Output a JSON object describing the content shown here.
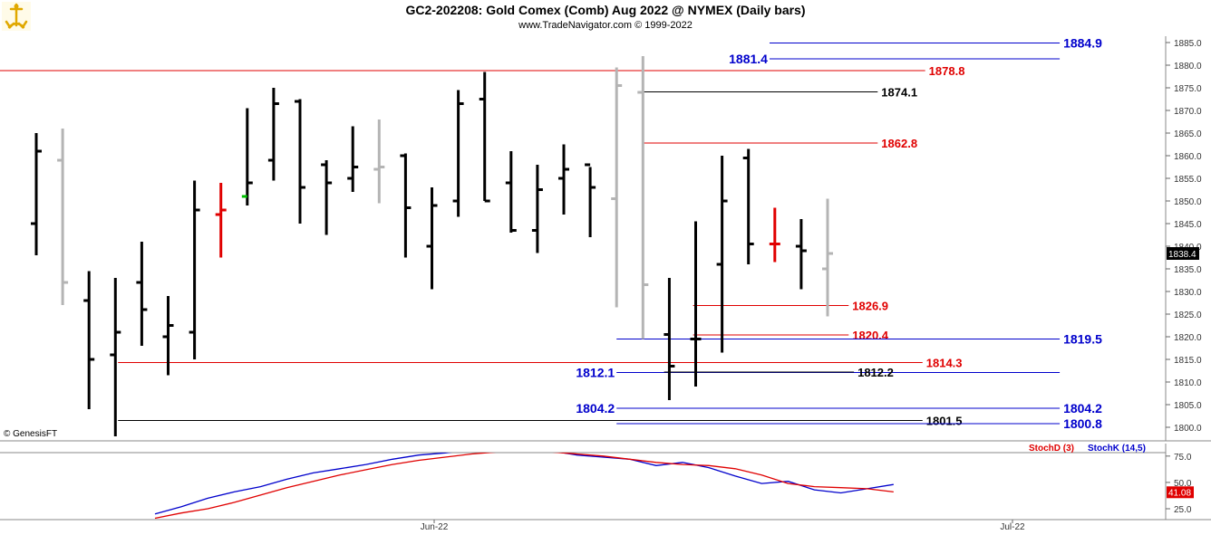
{
  "header": {
    "title": "GC2-202208:  Gold Comex (Comb) Aug 2022 @ NYMEX  (Daily bars)",
    "subtitle": "www.TradeNavigator.com © 1999-2022",
    "credit": "© GenesisFT"
  },
  "colors": {
    "up_bar": "#000000",
    "down_bar": "#000000",
    "gray_bar": "#b4b4b4",
    "red_bar": "#e00000",
    "blue_level": "#0000cc",
    "red_level": "#e00000",
    "black_level": "#000000",
    "stoch_d": "#e00000",
    "stoch_k": "#0000cc",
    "grid": "#666666"
  },
  "chart_data": [
    {
      "type": "bar",
      "subtype": "ohlc",
      "title": "GC2-202208:  Gold Comex (Comb) Aug 2022 @ NYMEX  (Daily bars)",
      "ylim": [
        1797,
        1888
      ],
      "y_ticks": [
        1800,
        1805,
        1810,
        1815,
        1820,
        1825,
        1830,
        1835,
        1840,
        1845,
        1850,
        1855,
        1860,
        1865,
        1870,
        1875,
        1880,
        1885
      ],
      "x_labels": [
        "Jun-22",
        "Jul-22"
      ],
      "last_price": "1838.4",
      "bars": [
        {
          "o": 1845,
          "h": 1865,
          "l": 1838,
          "c": 1861,
          "color": "black"
        },
        {
          "o": 1859,
          "h": 1866,
          "l": 1827,
          "c": 1832,
          "color": "gray"
        },
        {
          "o": 1828,
          "h": 1834.5,
          "l": 1804,
          "c": 1815,
          "color": "black"
        },
        {
          "o": 1816,
          "h": 1833,
          "l": 1798,
          "c": 1821,
          "color": "black"
        },
        {
          "o": 1832,
          "h": 1841,
          "l": 1818,
          "c": 1826,
          "color": "black"
        },
        {
          "o": 1820,
          "h": 1829,
          "l": 1811.5,
          "c": 1822.5,
          "color": "black"
        },
        {
          "o": 1821,
          "h": 1854.5,
          "l": 1815,
          "c": 1848,
          "color": "black"
        },
        {
          "o": 1847,
          "h": 1854,
          "l": 1837.5,
          "c": 1848,
          "color": "red"
        },
        {
          "o": 1851,
          "h": 1870.5,
          "l": 1849,
          "c": 1854,
          "color": "black",
          "open_color": "green"
        },
        {
          "o": 1859,
          "h": 1875,
          "l": 1854.5,
          "c": 1871.5,
          "color": "black"
        },
        {
          "o": 1872,
          "h": 1872.5,
          "l": 1845,
          "c": 1853,
          "color": "black"
        },
        {
          "o": 1858,
          "h": 1859,
          "l": 1842.5,
          "c": 1854,
          "color": "black"
        },
        {
          "o": 1855,
          "h": 1866.5,
          "l": 1852,
          "c": 1857.5,
          "color": "black"
        },
        {
          "o": 1857,
          "h": 1868,
          "l": 1849.5,
          "c": 1857.5,
          "color": "gray"
        },
        {
          "o": 1860,
          "h": 1860.5,
          "l": 1837.5,
          "c": 1848.5,
          "color": "black"
        },
        {
          "o": 1840,
          "h": 1853,
          "l": 1830.5,
          "c": 1849,
          "color": "black"
        },
        {
          "o": 1850,
          "h": 1874.5,
          "l": 1846.5,
          "c": 1871.5,
          "color": "black"
        },
        {
          "o": 1872.5,
          "h": 1878.5,
          "l": 1850,
          "c": 1850,
          "color": "black"
        },
        {
          "o": 1854,
          "h": 1861,
          "l": 1843,
          "c": 1843.5,
          "color": "black"
        },
        {
          "o": 1843.5,
          "h": 1858,
          "l": 1838.5,
          "c": 1852.5,
          "color": "black"
        },
        {
          "o": 1855,
          "h": 1862.5,
          "l": 1847,
          "c": 1857,
          "color": "black"
        },
        {
          "o": 1858,
          "h": 1857.5,
          "l": 1842,
          "c": 1853,
          "color": "black"
        },
        {
          "o": 1850.5,
          "h": 1879.5,
          "l": 1826.5,
          "c": 1875.5,
          "color": "gray"
        },
        {
          "o": 1874,
          "h": 1882,
          "l": 1819.5,
          "c": 1831.5,
          "color": "gray"
        },
        {
          "o": 1820.5,
          "h": 1833,
          "l": 1806,
          "c": 1813.5,
          "color": "black"
        },
        {
          "o": 1819.5,
          "h": 1845.5,
          "l": 1809,
          "c": 1819.5,
          "color": "black"
        },
        {
          "o": 1836,
          "h": 1860,
          "l": 1816.5,
          "c": 1850,
          "color": "black"
        },
        {
          "o": 1859.5,
          "h": 1861.5,
          "l": 1836,
          "c": 1840.5,
          "color": "black"
        },
        {
          "o": 1840.5,
          "h": 1848.5,
          "l": 1836.5,
          "c": 1840.5,
          "color": "red"
        },
        {
          "o": 1840,
          "h": 1846,
          "l": 1830.5,
          "c": 1839,
          "color": "black"
        },
        {
          "o": 1835,
          "h": 1850.5,
          "l": 1824.5,
          "c": 1838.4,
          "color": "gray"
        }
      ],
      "levels": [
        {
          "value": 1884.9,
          "label": "1884.9",
          "color": "blue",
          "x0_bar": 27.8,
          "x1_bar": 38.8,
          "label_side": "right"
        },
        {
          "value": 1881.4,
          "label": "1881.4",
          "color": "blue",
          "x0_bar": 27.8,
          "x1_bar": 38.8,
          "label_side": "left"
        },
        {
          "value": 1878.8,
          "label": "1878.8",
          "color": "red",
          "x0_bar": -1.6,
          "x1_bar": 33.7,
          "label_side": "right"
        },
        {
          "value": 1874.1,
          "label": "1874.1",
          "color": "black",
          "x0_bar": 23,
          "x1_bar": 31.9,
          "label_side": "right"
        },
        {
          "value": 1862.8,
          "label": "1862.8",
          "color": "red",
          "x0_bar": 23,
          "x1_bar": 31.9,
          "label_side": "right"
        },
        {
          "value": 1826.9,
          "label": "1826.9",
          "color": "red",
          "x0_bar": 24.9,
          "x1_bar": 30.8,
          "label_side": "right"
        },
        {
          "value": 1820.4,
          "label": "1820.4",
          "color": "red",
          "x0_bar": 24.9,
          "x1_bar": 30.8,
          "label_side": "right"
        },
        {
          "value": 1819.5,
          "label": "1819.5",
          "color": "blue",
          "x0_bar": 22,
          "x1_bar": 38.8,
          "label_side": "right"
        },
        {
          "value": 1814.3,
          "label": "1814.3",
          "color": "red",
          "x0_bar": 3.1,
          "x1_bar": 33.6,
          "label_side": "right"
        },
        {
          "value": 1812.1,
          "label": "1812.1",
          "color": "blue",
          "x0_bar": 22,
          "x1_bar": 38.8,
          "label_side": "left"
        },
        {
          "value": 1812.2,
          "label": "1812.2",
          "color": "black",
          "x0_bar": 23.8,
          "x1_bar": 31,
          "label_side": "right"
        },
        {
          "value": 1804.2,
          "label": "1804.2",
          "color": "blue",
          "x0_bar": 22,
          "x1_bar": 38.8,
          "label_side": "both"
        },
        {
          "value": 1801.5,
          "label": "1801.5",
          "color": "black",
          "x0_bar": 3.1,
          "x1_bar": 33.6,
          "label_side": "right"
        },
        {
          "value": 1800.8,
          "label": "1800.8",
          "color": "blue",
          "x0_bar": 22,
          "x1_bar": 38.8,
          "label_side": "right"
        }
      ]
    },
    {
      "type": "line",
      "ylim": [
        20,
        85
      ],
      "y_ticks": [
        25,
        50,
        75
      ],
      "legend": [
        "StochD (3)",
        "StochK (14,5)"
      ],
      "readouts": [
        "41.08"
      ],
      "x_start_bar": 4.5,
      "series": [
        {
          "name": "StochK (14,5)",
          "color": "blue",
          "values": [
            20,
            27,
            35,
            41,
            46,
            53,
            59,
            63,
            67,
            72,
            76,
            78,
            81,
            80,
            84,
            80,
            76,
            74,
            72,
            66,
            69,
            64,
            56,
            49,
            51,
            43,
            40,
            44,
            48
          ]
        },
        {
          "name": "StochD (3)",
          "color": "red",
          "values": [
            16,
            21,
            25,
            31,
            38,
            45,
            51,
            57,
            62,
            67,
            71,
            74,
            77,
            79,
            80,
            79,
            77,
            75,
            72,
            69,
            67,
            66,
            63,
            57,
            49,
            46,
            45,
            44,
            41
          ]
        }
      ]
    }
  ]
}
